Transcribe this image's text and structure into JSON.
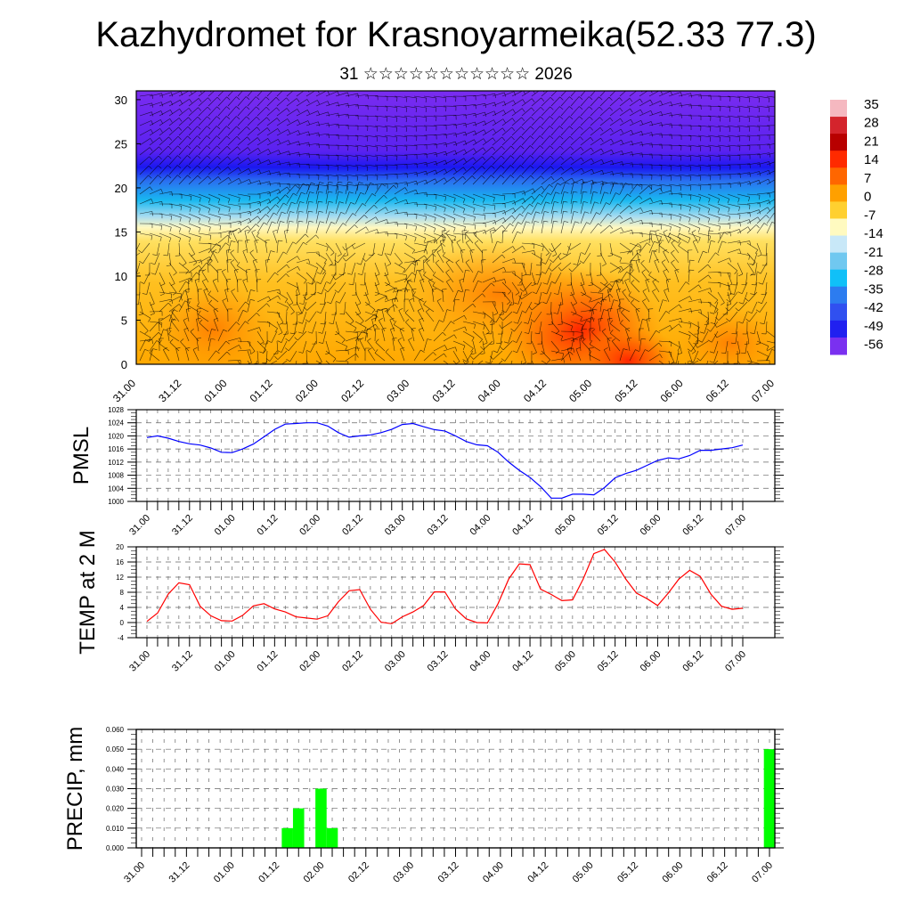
{
  "header": {
    "title": "Kazhydromet for Krasnoyarmeika(52.33 77.3)",
    "subtitle": "31 ☆☆☆☆☆☆☆☆☆☆☆ 2026"
  },
  "time_labels": [
    "31.00",
    "31.12",
    "01.00",
    "01.12",
    "02.00",
    "02.12",
    "03.00",
    "03.12",
    "04.00",
    "04.12",
    "05.00",
    "05.12",
    "06.00",
    "06.12",
    "07.00"
  ],
  "colors": {
    "pmsl_line": "#0000ff",
    "temp_line": "#ff0000",
    "precip_bar": "#00ff00",
    "grid": "#555555"
  },
  "chart_data": [
    {
      "type": "heatmap",
      "title": "",
      "xlabel": "",
      "ylabel": "",
      "x_tick_labels": [
        "31.00",
        "31.12",
        "01.00",
        "01.12",
        "02.00",
        "02.12",
        "03.00",
        "03.12",
        "04.00",
        "04.12",
        "05.00",
        "05.12",
        "06.00",
        "06.12",
        "07.00"
      ],
      "y_ticks": [
        0,
        5,
        10,
        15,
        20,
        25,
        30
      ],
      "ylim": [
        0,
        31
      ],
      "colorbar": {
        "labels": [
          "35",
          "28",
          "21",
          "14",
          "7",
          "0",
          "-7",
          "-14",
          "-21",
          "-28",
          "-35",
          "-42",
          "-49",
          "-56"
        ],
        "stops": [
          "#f5b8c0",
          "#d4242c",
          "#b80000",
          "#ff2a00",
          "#ff6600",
          "#ffa000",
          "#ffd030",
          "#fffac0",
          "#c8e8f8",
          "#70c8f0",
          "#10c0f8",
          "#2c7cf0",
          "#3050f0",
          "#2020f0",
          "#7a30f0"
        ]
      },
      "overlay": "wind vectors"
    },
    {
      "type": "line",
      "ylabel": "PMSL",
      "ylim": [
        1000,
        1028
      ],
      "y_ticks": [
        "1000",
        "1004",
        "1008",
        "1012",
        "1016",
        "1020",
        "1024",
        "1028"
      ],
      "x_step_hours": 3,
      "series": [
        {
          "name": "PMSL",
          "values": [
            1019.5,
            1020,
            1019.3,
            1018.3,
            1017.6,
            1017.2,
            1016.3,
            1015,
            1014.9,
            1016,
            1017.5,
            1019.7,
            1022,
            1023.6,
            1023.8,
            1024,
            1024,
            1023,
            1021,
            1019.6,
            1020,
            1020.3,
            1021,
            1022,
            1023.5,
            1023.8,
            1022.8,
            1021.9,
            1021.5,
            1020,
            1018.3,
            1017.3,
            1017,
            1015,
            1012,
            1009.5,
            1007.3,
            1004.5,
            1001,
            1001,
            1002.2,
            1002.2,
            1002,
            1004.2,
            1007.2,
            1008.5,
            1009.5,
            1011,
            1012.5,
            1013.3,
            1013,
            1014,
            1015.6,
            1015.6,
            1016,
            1016.4,
            1017.2
          ]
        }
      ]
    },
    {
      "type": "line",
      "ylabel": "TEMP at 2 M",
      "ylim": [
        -4,
        20
      ],
      "y_ticks": [
        "-4",
        "0",
        "4",
        "8",
        "12",
        "16",
        "20"
      ],
      "x_step_hours": 3,
      "series": [
        {
          "name": "TEMP at 2 M",
          "values": [
            0.3,
            2.5,
            7.5,
            10.5,
            10,
            4.3,
            1.8,
            0.5,
            0.4,
            1.9,
            4.4,
            5,
            3.6,
            2.8,
            1.5,
            1.2,
            0.9,
            1.8,
            5.5,
            8.4,
            8.7,
            3.5,
            0.1,
            -0.3,
            1.5,
            2.8,
            4.5,
            8.1,
            8.1,
            3.6,
            1,
            0,
            -0.1,
            5,
            11.5,
            15.5,
            15.3,
            8.8,
            7.4,
            5.8,
            6,
            11.5,
            18.2,
            19.3,
            16,
            11.5,
            7.8,
            6.3,
            4.5,
            7.8,
            11.5,
            13.8,
            12.2,
            7.5,
            4.3,
            3.5,
            3.8
          ]
        }
      ]
    },
    {
      "type": "bar",
      "ylabel": "PRECIP, mm",
      "ylim": [
        0,
        0.06
      ],
      "y_ticks": [
        "0.000",
        "0.010",
        "0.020",
        "0.030",
        "0.040",
        "0.050",
        "0.060"
      ],
      "x_step_hours": 3,
      "bars": [
        {
          "index": 13,
          "value": 0.01
        },
        {
          "index": 14,
          "value": 0.02
        },
        {
          "index": 16,
          "value": 0.03
        },
        {
          "index": 17,
          "value": 0.01
        },
        {
          "index": 56,
          "value": 0.05
        }
      ]
    }
  ]
}
